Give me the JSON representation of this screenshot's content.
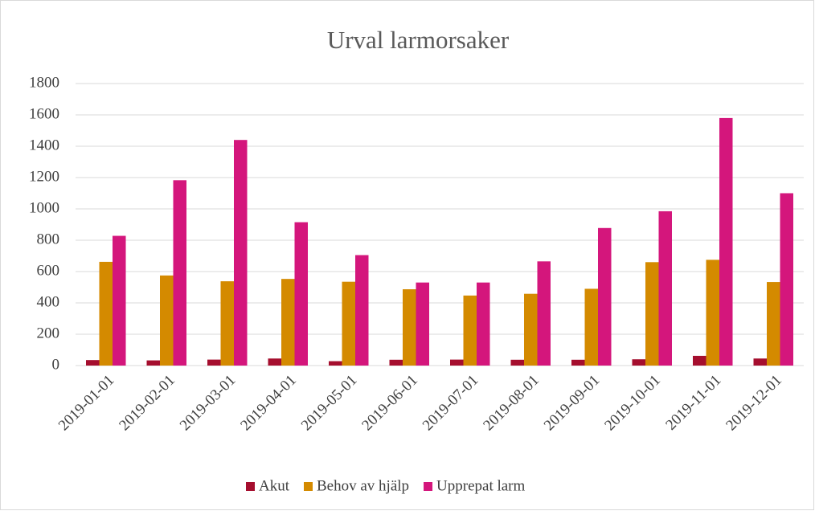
{
  "chart_data": {
    "type": "bar",
    "title": "Urval larmorsaker",
    "categories": [
      "2019-01-01",
      "2019-02-01",
      "2019-03-01",
      "2019-04-01",
      "2019-05-01",
      "2019-06-01",
      "2019-07-01",
      "2019-08-01",
      "2019-09-01",
      "2019-10-01",
      "2019-11-01",
      "2019-12-01"
    ],
    "series": [
      {
        "name": "Akut",
        "color": "#a50e2e",
        "values": [
          35,
          33,
          38,
          45,
          28,
          37,
          38,
          37,
          37,
          40,
          62,
          45
        ]
      },
      {
        "name": "Behov av hjälp",
        "color": "#d48a00",
        "values": [
          662,
          575,
          538,
          553,
          535,
          487,
          447,
          458,
          490,
          660,
          675,
          533
        ]
      },
      {
        "name": "Upprepat larm",
        "color": "#d4167c",
        "values": [
          828,
          1183,
          1440,
          915,
          705,
          530,
          530,
          665,
          878,
          985,
          1580,
          1100
        ]
      }
    ],
    "ylim": [
      0,
      1800
    ],
    "yticks": [
      0,
      200,
      400,
      600,
      800,
      1000,
      1200,
      1400,
      1600,
      1800
    ],
    "grid": true,
    "legend": "bottom"
  }
}
